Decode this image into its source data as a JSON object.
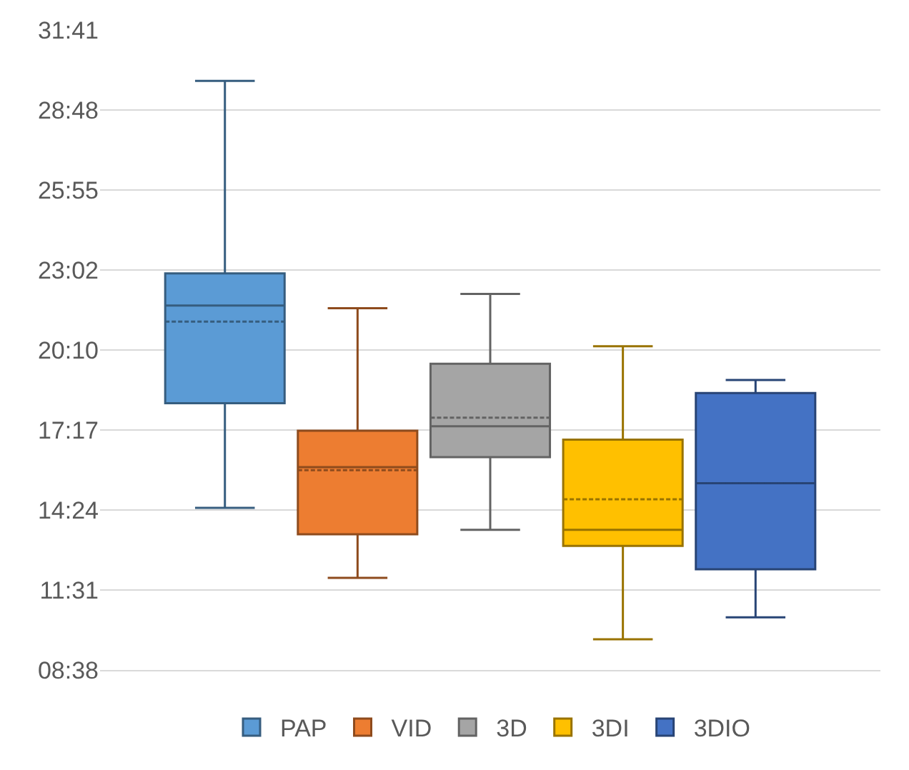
{
  "chart_data": {
    "type": "box",
    "categories": [
      null
    ],
    "series": [
      {
        "name": "PAP",
        "color": "#5b9bd5",
        "boxes": [
          {
            "low": 14.47,
            "q1": 18.24,
            "median": 21.76,
            "q3": 22.92,
            "high": 29.85,
            "mean": 21.18
          }
        ]
      },
      {
        "name": "VID",
        "color": "#ed7d31",
        "boxes": [
          {
            "low": 11.95,
            "q1": 13.52,
            "median": 15.94,
            "q3": 17.25,
            "high": 21.66,
            "mean": 15.83
          }
        ]
      },
      {
        "name": "3D",
        "color": "#a5a5a5",
        "boxes": [
          {
            "low": 13.68,
            "q1": 16.3,
            "median": 17.41,
            "q3": 19.66,
            "high": 22.18,
            "mean": 17.72
          }
        ]
      },
      {
        "name": "3DI",
        "color": "#ffc000",
        "boxes": [
          {
            "low": 9.74,
            "q1": 13.1,
            "median": 13.68,
            "q3": 16.93,
            "high": 20.29,
            "mean": 14.78
          }
        ]
      },
      {
        "name": "3DIO",
        "color": "#4472c4",
        "boxes": [
          {
            "low": 10.53,
            "q1": 12.26,
            "median": 15.36,
            "q3": 18.61,
            "high": 19.08,
            "mean": 15.36
          }
        ]
      }
    ],
    "ylim": [
      8.633,
      31.683
    ],
    "yticks": [
      {
        "value": 8.633,
        "label": "08:38"
      },
      {
        "value": 11.517,
        "label": "11:31"
      },
      {
        "value": 14.4,
        "label": "14:24"
      },
      {
        "value": 17.283,
        "label": "17:17"
      },
      {
        "value": 20.167,
        "label": "20:10"
      },
      {
        "value": 23.033,
        "label": "23:02"
      },
      {
        "value": 25.917,
        "label": "25:55"
      },
      {
        "value": 28.8,
        "label": "28:48"
      },
      {
        "value": 31.683,
        "label": "31:41"
      }
    ],
    "grid": "y",
    "legend": "bottom"
  }
}
